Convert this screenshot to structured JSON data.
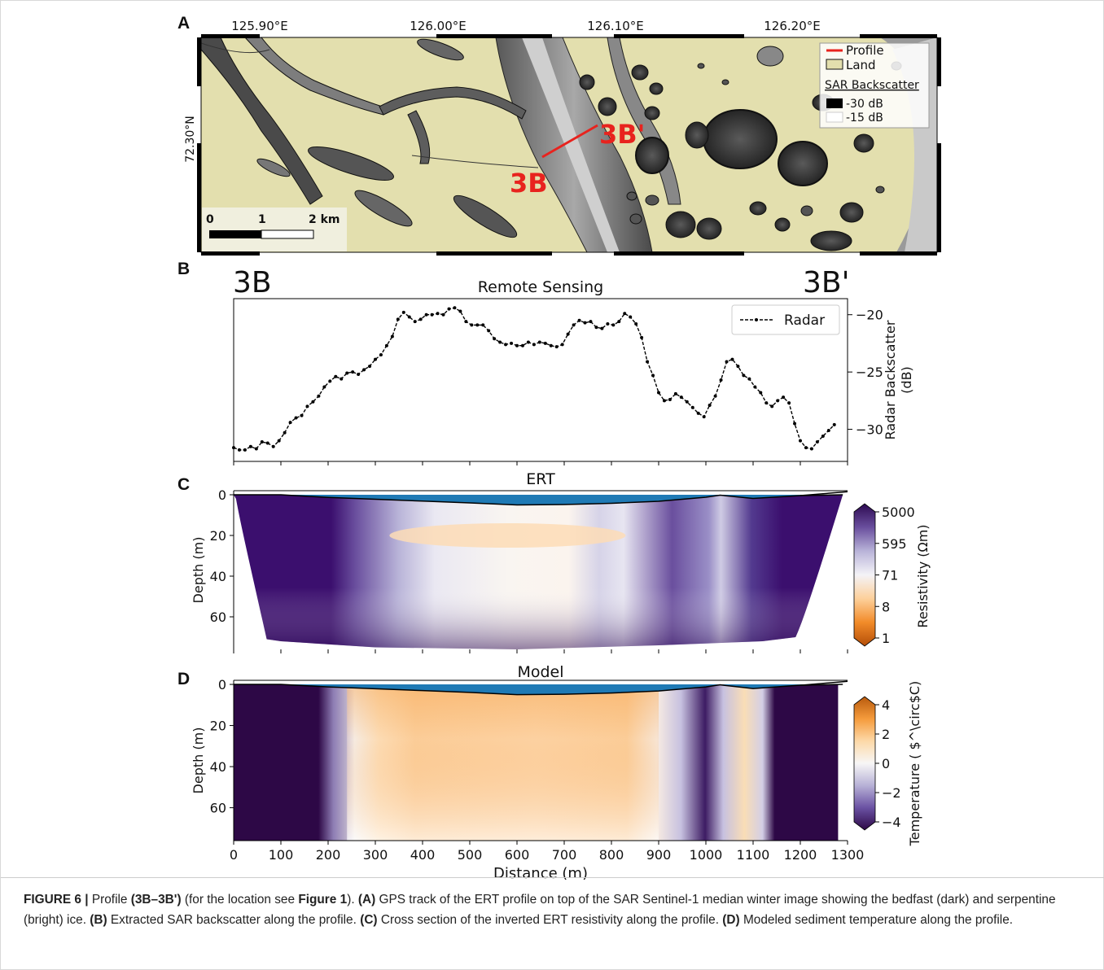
{
  "panel_labels": {
    "a": "A",
    "b": "B",
    "c": "C",
    "d": "D"
  },
  "map": {
    "lon_ticks": [
      "125.90°E",
      "126.00°E",
      "126.10°E",
      "126.20°E"
    ],
    "lat_tick": "72.30°N",
    "profile_start_label": "3B",
    "profile_end_label": "3B'",
    "legend": {
      "profile": "Profile",
      "land": "Land",
      "sar_title": "SAR Backscatter",
      "low": "-30 dB",
      "high": "-15 dB"
    },
    "scalebar": {
      "t0": "0",
      "t1": "1",
      "t2": "2 km"
    },
    "colors": {
      "land": "#e3dfae",
      "profile": "#e8231e",
      "profile_text": "#e8231e"
    }
  },
  "chart_data": [
    {
      "id": "remote-sensing",
      "type": "line",
      "title": "Remote Sensing",
      "left_corner_label": "3B",
      "right_corner_label": "3B'",
      "xlabel": "",
      "ylabel": "Radar Backscatter\n(dB)",
      "ylabel_lines": [
        "Radar Backscatter",
        "(dB)"
      ],
      "xlim": [
        0,
        1300
      ],
      "ylim": [
        -32.8,
        -18.6
      ],
      "yticks": [
        -20,
        -25,
        -30
      ],
      "ytick_labels": [
        "−20",
        "−25",
        "−30"
      ],
      "legend": "top-right",
      "series": [
        {
          "name": "Radar",
          "style": "dashed-dotted",
          "color": "#000000",
          "x": [
            0,
            12,
            24,
            36,
            48,
            60,
            72,
            84,
            96,
            108,
            120,
            132,
            144,
            156,
            168,
            180,
            192,
            204,
            216,
            228,
            240,
            252,
            264,
            276,
            288,
            300,
            312,
            324,
            336,
            348,
            360,
            372,
            384,
            396,
            408,
            420,
            432,
            444,
            456,
            468,
            480,
            492,
            504,
            516,
            528,
            540,
            552,
            564,
            576,
            588,
            600,
            612,
            624,
            636,
            648,
            660,
            672,
            684,
            696,
            708,
            720,
            732,
            744,
            756,
            768,
            780,
            792,
            804,
            816,
            828,
            840,
            852,
            864,
            876,
            888,
            900,
            912,
            924,
            936,
            948,
            960,
            972,
            984,
            996,
            1008,
            1020,
            1032,
            1044,
            1056,
            1068,
            1080,
            1092,
            1104,
            1116,
            1128,
            1140,
            1152,
            1164,
            1176,
            1188,
            1200,
            1212,
            1224,
            1236,
            1248,
            1260,
            1272
          ],
          "y": [
            -31.6,
            -31.8,
            -31.8,
            -31.5,
            -31.7,
            -31.1,
            -31.2,
            -31.5,
            -31.0,
            -30.3,
            -29.4,
            -29.0,
            -28.8,
            -28.0,
            -27.6,
            -27.1,
            -26.3,
            -25.8,
            -25.4,
            -25.6,
            -25.1,
            -25.0,
            -25.2,
            -24.8,
            -24.5,
            -23.9,
            -23.5,
            -22.7,
            -21.9,
            -20.4,
            -19.8,
            -20.2,
            -20.6,
            -20.4,
            -20.0,
            -20.0,
            -19.9,
            -20.0,
            -19.5,
            -19.4,
            -19.7,
            -20.6,
            -20.9,
            -20.9,
            -20.9,
            -21.4,
            -22.1,
            -22.4,
            -22.6,
            -22.5,
            -22.7,
            -22.7,
            -22.4,
            -22.6,
            -22.4,
            -22.5,
            -22.7,
            -22.8,
            -22.6,
            -21.7,
            -20.9,
            -20.5,
            -20.7,
            -20.6,
            -21.1,
            -21.2,
            -20.8,
            -20.9,
            -20.6,
            -19.9,
            -20.2,
            -20.8,
            -22.0,
            -24.1,
            -25.3,
            -26.8,
            -27.5,
            -27.4,
            -26.9,
            -27.2,
            -27.6,
            -28.1,
            -28.6,
            -28.9,
            -27.9,
            -27.1,
            -25.7,
            -24.1,
            -23.9,
            -24.5,
            -25.3,
            -25.6,
            -26.3,
            -26.8,
            -27.7,
            -28.0,
            -27.5,
            -27.2,
            -27.7,
            -29.5,
            -31.0,
            -31.6,
            -31.7,
            -31.1,
            -30.6,
            -30.1,
            -29.6
          ]
        }
      ]
    },
    {
      "id": "ert",
      "type": "heatmap",
      "title": "ERT",
      "xlabel": "",
      "ylabel": "Depth (m)",
      "xlim": [
        0,
        1300
      ],
      "ylim": [
        76,
        -2
      ],
      "yticks": [
        0,
        20,
        40,
        60
      ],
      "colorbar": {
        "label": "Resistivity (Ωm)",
        "ticks": [
          "5000",
          "595",
          "71",
          "8",
          "1"
        ],
        "colors": [
          "#2d0a52",
          "#6a4f9e",
          "#b9b4d9",
          "#f4f3f7",
          "#fdd09b",
          "#f28b29",
          "#b44e08"
        ]
      },
      "water_color": "#1f7ab5",
      "water_depth_profile": {
        "x": [
          0,
          100,
          200,
          300,
          400,
          500,
          600,
          700,
          800,
          900,
          1000,
          1030,
          1100,
          1200,
          1290
        ],
        "depth": [
          0,
          0,
          1.3,
          2.2,
          3.1,
          4,
          5,
          4.8,
          4.2,
          3.2,
          1.2,
          0.2,
          1.8,
          0.4,
          0
        ]
      },
      "columns_resistivity_class": [
        {
          "x": [
            0,
            225
          ],
          "value": "very-high"
        },
        {
          "x": [
            225,
            420
          ],
          "value": "high-to-medium"
        },
        {
          "x": [
            420,
            830
          ],
          "value": "low (orange at ~20 m)"
        },
        {
          "x": [
            830,
            945
          ],
          "value": "medium"
        },
        {
          "x": [
            945,
            1030
          ],
          "value": "high"
        },
        {
          "x": [
            1030,
            1110
          ],
          "value": "medium-low"
        },
        {
          "x": [
            1110,
            1280
          ],
          "value": "very-high"
        }
      ]
    },
    {
      "id": "model",
      "type": "heatmap",
      "title": "Model",
      "xlabel": "Distance (m)",
      "ylabel": "Depth (m)",
      "xlim": [
        0,
        1300
      ],
      "ylim": [
        76,
        -2
      ],
      "xticks": [
        0,
        100,
        200,
        300,
        400,
        500,
        600,
        700,
        800,
        900,
        1000,
        1100,
        1200,
        1300
      ],
      "yticks": [
        0,
        20,
        40,
        60
      ],
      "colorbar": {
        "label": "Temperature (°C)",
        "label_display": "Temperature ( $^\\circ$C)",
        "ticks": [
          "4",
          "2",
          "0",
          "−2",
          "−4"
        ],
        "colors": [
          "#b85a0d",
          "#f59b3c",
          "#fdd9a8",
          "#f7f6f6",
          "#b7b1d6",
          "#6a51a3",
          "#2d0846"
        ]
      },
      "water_color": "#1f7ab5"
    }
  ],
  "caption": {
    "figure_label": "FIGURE 6 |",
    "t1": " Profile ",
    "b1": "(3B–3B')",
    "t2": " (for the location see ",
    "b2": "Figure 1",
    "t3": "). ",
    "b3": "(A)",
    "t4": " GPS track of the ERT profile on top of the SAR Sentinel-1 median winter image showing the bedfast (dark) and serpentine (bright) ice. ",
    "b4": "(B)",
    "t5": " Extracted SAR backscatter along the profile. ",
    "b5": "(C)",
    "t6": " Cross section of the inverted ERT resistivity along the profile. ",
    "b6": "(D)",
    "t7": " Modeled sediment temperature along the profile."
  }
}
